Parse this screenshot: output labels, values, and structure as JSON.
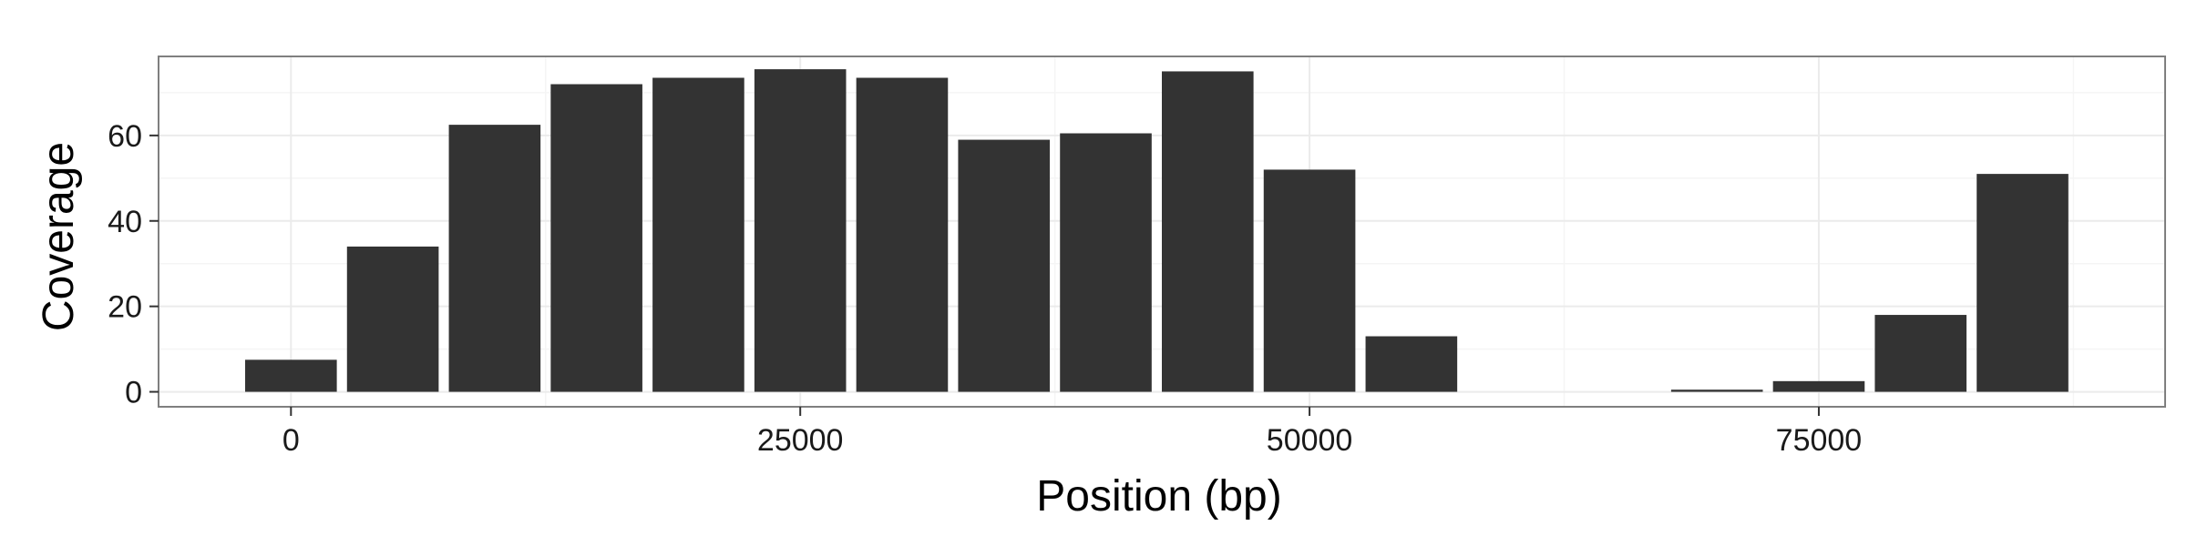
{
  "chart_data": {
    "type": "bar",
    "xlabel": "Position (bp)",
    "ylabel": "Coverage",
    "x_ticks": [
      0,
      25000,
      50000,
      75000
    ],
    "y_ticks": [
      0,
      20,
      40,
      60
    ],
    "x_tick_labels": [
      "0",
      "25000",
      "50000",
      "75000"
    ],
    "y_tick_labels": [
      "0",
      "20",
      "40",
      "60"
    ],
    "bin_width": 5000,
    "x": [
      0,
      5000,
      10000,
      15000,
      20000,
      25000,
      30000,
      35000,
      40000,
      45000,
      50000,
      55000,
      60000,
      65000,
      70000,
      75000,
      80000,
      85000
    ],
    "values": [
      7.5,
      34,
      62.5,
      72,
      73.5,
      75.5,
      73.5,
      59,
      60.5,
      75,
      52,
      13,
      0,
      0,
      0.5,
      2.5,
      18,
      51
    ],
    "xlim": [
      -6500,
      92000
    ],
    "ylim": [
      -3.5,
      78.5
    ],
    "grid": true,
    "colors": {
      "bar": "#333333",
      "panel_border": "#7f7f7f",
      "grid_major": "#ebebeb",
      "grid_minor": "#f5f5f5"
    }
  }
}
